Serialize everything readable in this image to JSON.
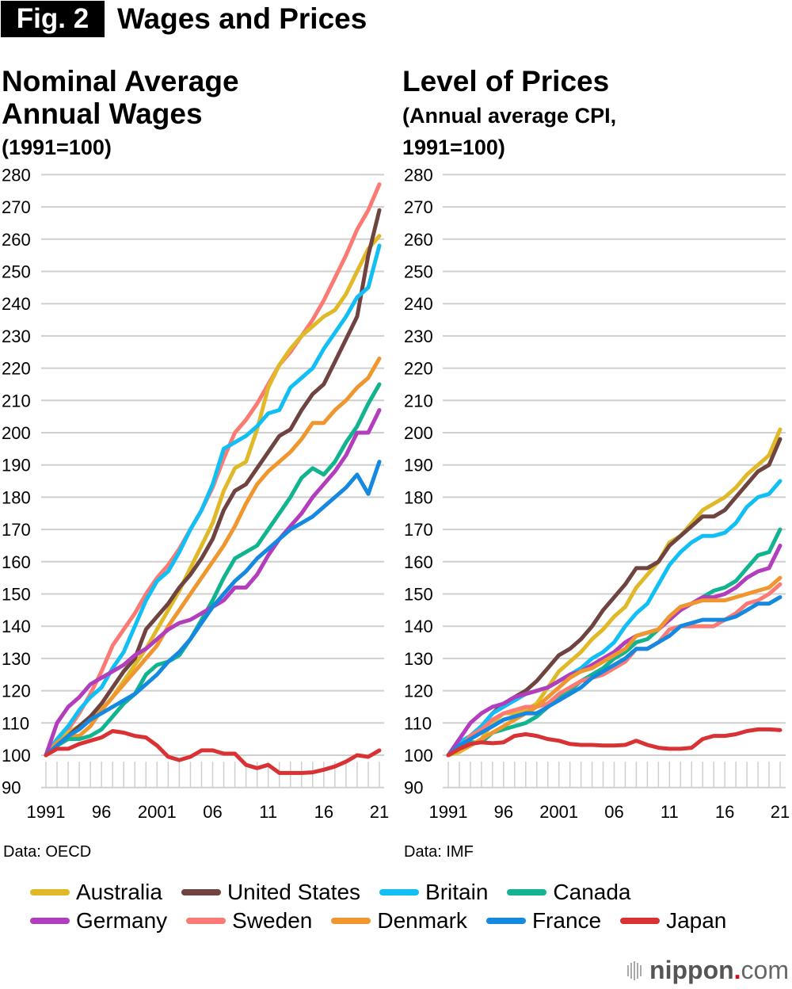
{
  "header": {
    "fig_label": "Fig. 2",
    "title": "Wages and Prices"
  },
  "colors": {
    "Australia": "#e0b928",
    "United States": "#6e4340",
    "Britain": "#12bff5",
    "Canada": "#12b38f",
    "Germany": "#b23dbd",
    "Sweden": "#fb7a74",
    "Denmark": "#f0962e",
    "France": "#1588e0",
    "Japan": "#d93235"
  },
  "legend": {
    "rows": [
      [
        "Australia",
        "United States",
        "Britain",
        "Canada"
      ],
      [
        "Germany",
        "Sweden",
        "Denmark",
        "France",
        "Japan"
      ]
    ]
  },
  "footer": {
    "logo_main": "nippon",
    "logo_dot": ".",
    "logo_suffix": "com"
  },
  "chart_data": [
    {
      "type": "line",
      "title": "Nominal Average Annual Wages",
      "title_lines": [
        "Nominal Average",
        "Annual Wages"
      ],
      "subtitle_lines": [
        "(1991=100)"
      ],
      "source": "Data: OECD",
      "xlabel": "",
      "ylabel": "",
      "ylim": [
        90,
        280
      ],
      "yticks": [
        90,
        100,
        110,
        120,
        130,
        140,
        150,
        160,
        170,
        180,
        190,
        200,
        210,
        220,
        230,
        240,
        250,
        260,
        270,
        280
      ],
      "xticks": [
        {
          "year": 1991,
          "label": "1991"
        },
        {
          "year": 1996,
          "label": "96"
        },
        {
          "year": 2001,
          "label": "2001"
        },
        {
          "year": 2006,
          "label": "06"
        },
        {
          "year": 2011,
          "label": "11"
        },
        {
          "year": 2016,
          "label": "16"
        },
        {
          "year": 2021,
          "label": "21"
        }
      ],
      "grid": true,
      "x": [
        1991,
        1992,
        1993,
        1994,
        1995,
        1996,
        1997,
        1998,
        1999,
        2000,
        2001,
        2002,
        2003,
        2004,
        2005,
        2006,
        2007,
        2008,
        2009,
        2010,
        2011,
        2012,
        2013,
        2014,
        2015,
        2016,
        2017,
        2018,
        2019,
        2020,
        2021
      ],
      "series": [
        {
          "name": "Sweden",
          "values": [
            100,
            104,
            108,
            113,
            119,
            126,
            134,
            139,
            144,
            150,
            155,
            159,
            164,
            170,
            176,
            183,
            192,
            200,
            204,
            209,
            215,
            221,
            225,
            230,
            235,
            241,
            248,
            255,
            263,
            269,
            277
          ]
        },
        {
          "name": "Australia",
          "values": [
            100,
            104,
            107,
            109,
            111,
            114,
            118,
            123,
            128,
            133,
            139,
            145,
            151,
            158,
            165,
            172,
            182,
            189,
            191,
            201,
            214,
            221,
            226,
            230,
            233,
            236,
            238,
            243,
            250,
            257,
            261
          ]
        },
        {
          "name": "United States",
          "values": [
            100,
            103,
            106,
            109,
            112,
            116,
            121,
            126,
            130,
            139,
            143,
            147,
            152,
            156,
            161,
            167,
            176,
            182,
            184,
            189,
            194,
            199,
            201,
            207,
            212,
            215,
            222,
            229,
            236,
            255,
            269
          ]
        },
        {
          "name": "Britain",
          "values": [
            100,
            105,
            109,
            114,
            118,
            121,
            127,
            132,
            140,
            148,
            154,
            157,
            163,
            170,
            176,
            184,
            195,
            197,
            199,
            202,
            206,
            207,
            214,
            217,
            220,
            226,
            231,
            236,
            242,
            245,
            258
          ]
        },
        {
          "name": "Denmark",
          "values": [
            100,
            104,
            106,
            106,
            109,
            114,
            118,
            122,
            126,
            130,
            134,
            140,
            145,
            150,
            155,
            160,
            165,
            171,
            178,
            184,
            188,
            191,
            194,
            198,
            203,
            203,
            207,
            210,
            214,
            217,
            223
          ]
        },
        {
          "name": "Canada",
          "values": [
            100,
            103,
            105,
            105,
            106,
            108,
            112,
            116,
            119,
            125,
            128,
            129,
            131,
            136,
            142,
            148,
            155,
            161,
            163,
            165,
            170,
            175,
            180,
            186,
            189,
            187,
            191,
            197,
            202,
            209,
            215
          ]
        },
        {
          "name": "Germany",
          "values": [
            100,
            110,
            115,
            118,
            122,
            124,
            126,
            128,
            131,
            133,
            136,
            139,
            141,
            142,
            144,
            146,
            148,
            152,
            152,
            156,
            162,
            167,
            171,
            175,
            180,
            184,
            188,
            193,
            200,
            200,
            207
          ]
        },
        {
          "name": "France",
          "values": [
            100,
            103,
            106,
            108,
            111,
            113,
            115,
            117,
            119,
            122,
            125,
            129,
            132,
            136,
            141,
            146,
            150,
            154,
            157,
            161,
            164,
            167,
            170,
            172,
            174,
            177,
            180,
            183,
            187,
            181,
            191
          ]
        },
        {
          "name": "Japan",
          "values": [
            100,
            102,
            102,
            103.5,
            104.5,
            105.5,
            107.5,
            107,
            106,
            105.5,
            103,
            99.5,
            98.5,
            99.5,
            101.5,
            101.5,
            100.5,
            100.5,
            97,
            96,
            97,
            94.5,
            94.5,
            94.5,
            94.7,
            95.5,
            96.5,
            98,
            100,
            99.5,
            101.5
          ]
        }
      ]
    },
    {
      "type": "line",
      "title": "Level of Prices",
      "title_lines": [
        "Level of Prices"
      ],
      "subtitle_lines": [
        "(Annual average CPI,",
        "1991=100)"
      ],
      "source": "Data: IMF",
      "xlabel": "",
      "ylabel": "",
      "ylim": [
        90,
        280
      ],
      "yticks": [
        90,
        100,
        110,
        120,
        130,
        140,
        150,
        160,
        170,
        180,
        190,
        200,
        210,
        220,
        230,
        240,
        250,
        260,
        270,
        280
      ],
      "xticks": [
        {
          "year": 1991,
          "label": "1991"
        },
        {
          "year": 1996,
          "label": "96"
        },
        {
          "year": 2001,
          "label": "2001"
        },
        {
          "year": 2006,
          "label": "06"
        },
        {
          "year": 2011,
          "label": "11"
        },
        {
          "year": 2016,
          "label": "16"
        },
        {
          "year": 2021,
          "label": "21"
        }
      ],
      "grid": true,
      "x": [
        1991,
        1992,
        1993,
        1994,
        1995,
        1996,
        1997,
        1998,
        1999,
        2000,
        2001,
        2002,
        2003,
        2004,
        2005,
        2006,
        2007,
        2008,
        2009,
        2010,
        2011,
        2012,
        2013,
        2014,
        2015,
        2016,
        2017,
        2018,
        2019,
        2020,
        2021
      ],
      "series": [
        {
          "name": "Australia",
          "values": [
            100,
            101,
            103,
            105,
            110,
            113,
            113,
            114,
            116,
            121,
            126,
            129,
            132,
            136,
            139,
            143,
            146,
            152,
            156,
            160,
            166,
            168,
            172,
            176,
            178,
            180,
            183,
            187,
            190,
            193,
            201
          ]
        },
        {
          "name": "United States",
          "values": [
            100,
            103,
            106,
            109,
            113,
            116,
            118,
            120,
            123,
            127,
            131,
            133,
            136,
            140,
            145,
            149,
            153,
            158,
            158,
            160,
            165,
            168,
            171,
            174,
            174,
            176,
            180,
            184,
            188,
            190,
            198
          ]
        },
        {
          "name": "Britain",
          "values": [
            100,
            104,
            106,
            109,
            113,
            115,
            117,
            119,
            120,
            121,
            123,
            125,
            127,
            130,
            132,
            135,
            140,
            144,
            147,
            153,
            159,
            163,
            166,
            168,
            168,
            169,
            172,
            177,
            180,
            181,
            185
          ]
        },
        {
          "name": "Canada",
          "values": [
            100,
            102,
            104,
            104,
            107,
            108,
            109,
            110,
            112,
            115,
            118,
            120,
            123,
            125,
            127,
            130,
            132,
            135,
            136,
            139,
            143,
            146,
            147,
            149,
            151,
            152,
            154,
            158,
            162,
            163,
            170
          ]
        },
        {
          "name": "Germany",
          "values": [
            100,
            105,
            110,
            113,
            115,
            116,
            118,
            119,
            120,
            121,
            123,
            125,
            126,
            128,
            130,
            132,
            135,
            137,
            138,
            139,
            142,
            145,
            147,
            149,
            149,
            150,
            152,
            155,
            157,
            158,
            165
          ]
        },
        {
          "name": "Sweden",
          "values": [
            100,
            102,
            106,
            108,
            111,
            113,
            114,
            115,
            115,
            116,
            119,
            121,
            123,
            124,
            125,
            127,
            129,
            133,
            133,
            135,
            139,
            140,
            140,
            140,
            140,
            142,
            144,
            147,
            148,
            150,
            153
          ]
        },
        {
          "name": "Denmark",
          "values": [
            100,
            102,
            103,
            105,
            107,
            109,
            111,
            113,
            115,
            118,
            121,
            124,
            126,
            127,
            129,
            131,
            133,
            137,
            138,
            139,
            143,
            146,
            147,
            148,
            148,
            148,
            149,
            150,
            151,
            152,
            155
          ]
        },
        {
          "name": "France",
          "values": [
            100,
            103,
            105,
            107,
            109,
            111,
            112,
            113,
            113,
            115,
            117,
            119,
            121,
            124,
            126,
            128,
            130,
            133,
            133,
            135,
            137,
            140,
            141,
            142,
            142,
            142,
            143,
            145,
            147,
            147,
            149
          ]
        },
        {
          "name": "Japan",
          "values": [
            100,
            102,
            103.5,
            104,
            103.7,
            104,
            106,
            106.5,
            106,
            105,
            104.5,
            103.5,
            103.2,
            103.2,
            103,
            103,
            103.2,
            104.5,
            103.2,
            102.3,
            102,
            102,
            102.3,
            105,
            106,
            106,
            106.5,
            107.5,
            108,
            108,
            107.8
          ]
        }
      ]
    }
  ]
}
